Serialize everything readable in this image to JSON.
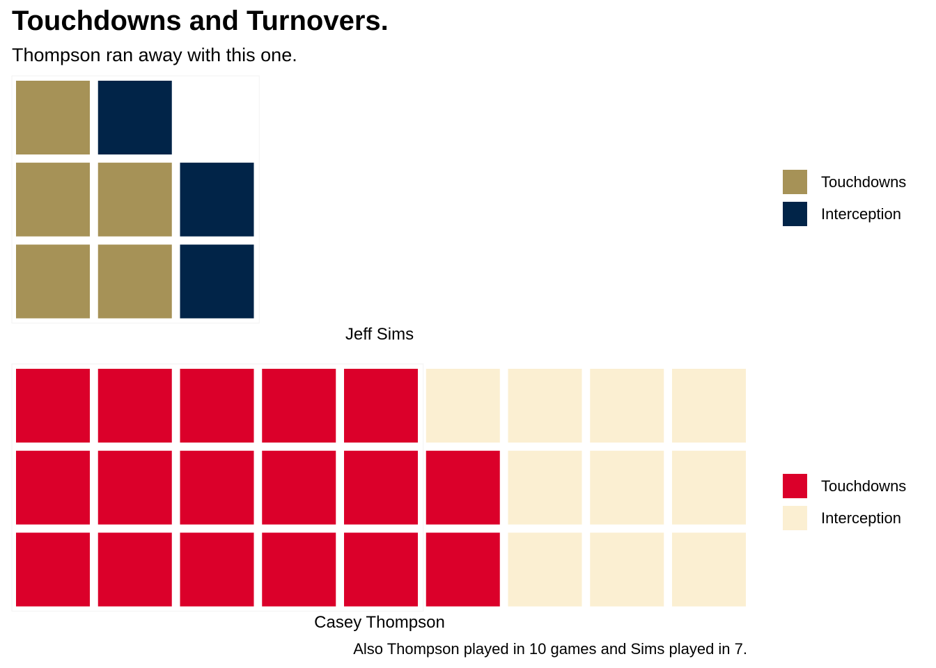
{
  "title": "Touchdowns and Turnovers.",
  "subtitle": "Thompson ran away with this one.",
  "caption": "Also Thompson played in 10 games and Sims played in 7.",
  "chart_data": [
    {
      "type": "waffle",
      "label": "Jeff Sims",
      "rows": 3,
      "categories": [
        {
          "name": "Touchdowns",
          "value": 5,
          "color": "#A69257"
        },
        {
          "name": "Interception",
          "value": 3,
          "color": "#012448"
        }
      ],
      "legend_placement": "right"
    },
    {
      "type": "waffle",
      "label": "Casey Thompson",
      "rows": 3,
      "categories": [
        {
          "name": "Touchdowns",
          "value": 17,
          "color": "#DB002A"
        },
        {
          "name": "Interception",
          "value": 10,
          "color": "#FBEFD2"
        }
      ],
      "legend_placement": "right"
    }
  ]
}
